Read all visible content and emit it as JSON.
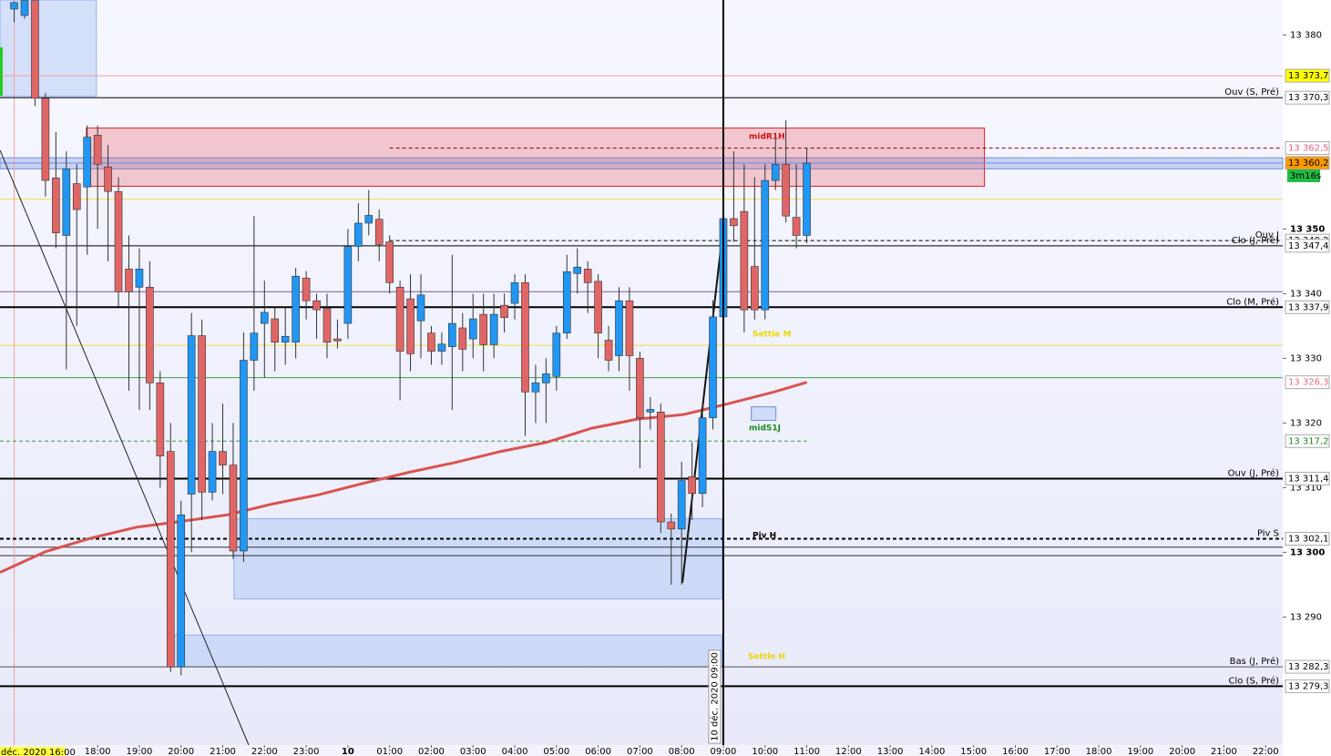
{
  "chart_data": {
    "type": "candlestick",
    "up_color": "#2196f3",
    "down_color": "#e06666",
    "xlim": [
      15.66,
      46.41
    ],
    "ylim": [
      13270.2,
      13385.4
    ],
    "date_label": "déc. 2020 16:00",
    "countdown": "3m16s",
    "crosshair": {
      "x": 33,
      "label": "10 déc. 2020 09:00",
      "color": "#000000"
    },
    "markers": [
      {
        "x": 16,
        "color": "#f0a0a0"
      }
    ],
    "xticks": [
      {
        "value": 18,
        "label": "18:00"
      },
      {
        "value": 19,
        "label": "19:00"
      },
      {
        "value": 20,
        "label": "20:00"
      },
      {
        "value": 21,
        "label": "21:00"
      },
      {
        "value": 22,
        "label": "22:00"
      },
      {
        "value": 23,
        "label": "23:00"
      },
      {
        "value": 24,
        "label": "10"
      },
      {
        "value": 25,
        "label": "01:00"
      },
      {
        "value": 26,
        "label": "02:00"
      },
      {
        "value": 27,
        "label": "03:00"
      },
      {
        "value": 28,
        "label": "04:00"
      },
      {
        "value": 29,
        "label": "05:00"
      },
      {
        "value": 30,
        "label": "06:00"
      },
      {
        "value": 31,
        "label": "07:00"
      },
      {
        "value": 32,
        "label": "08:00"
      },
      {
        "value": 33,
        "label": "09:00"
      },
      {
        "value": 34,
        "label": "10:00"
      },
      {
        "value": 35,
        "label": "11:00"
      },
      {
        "value": 36,
        "label": "12:00"
      },
      {
        "value": 37,
        "label": "13:00"
      },
      {
        "value": 38,
        "label": "14:00"
      },
      {
        "value": 39,
        "label": "15:00"
      },
      {
        "value": 40,
        "label": "16:00"
      },
      {
        "value": 41,
        "label": "17:00"
      },
      {
        "value": 42,
        "label": "18:00"
      },
      {
        "value": 43,
        "label": "19:00"
      },
      {
        "value": 44,
        "label": "20:00"
      },
      {
        "value": 45,
        "label": "21:00"
      },
      {
        "value": 46,
        "label": "22:00"
      }
    ],
    "yticks": [
      {
        "value": 13380,
        "label": "13 380"
      },
      {
        "value": 13350,
        "label": "13 350"
      },
      {
        "value": 13340,
        "label": "13 340"
      },
      {
        "value": 13330,
        "label": "13 330"
      },
      {
        "value": 13320,
        "label": "13 320"
      },
      {
        "value": 13310,
        "label": "13 310"
      },
      {
        "value": 13300,
        "label": "13 300"
      },
      {
        "value": 13290,
        "label": "13 290"
      }
    ],
    "x": [
      16,
      16.25,
      16.5,
      16.75,
      17,
      17.25,
      17.5,
      17.75,
      18,
      18.25,
      18.5,
      18.75,
      19,
      19.25,
      19.5,
      19.75,
      20,
      20.25,
      20.5,
      20.75,
      21,
      21.25,
      21.5,
      21.75,
      22,
      22.25,
      22.5,
      22.75,
      23,
      23.25,
      23.5,
      23.75,
      24,
      24.25,
      24.5,
      24.75,
      25,
      25.25,
      25.5,
      25.75,
      26,
      26.25,
      26.5,
      26.75,
      27,
      27.25,
      27.5,
      27.75,
      28,
      28.25,
      28.5,
      28.75,
      29,
      29.25,
      29.5,
      29.75,
      30,
      30.25,
      30.5,
      30.75,
      31,
      31.25,
      31.5,
      31.75,
      32,
      32.25,
      32.5,
      32.75,
      33,
      33.25,
      33.5,
      33.75,
      34,
      34.25,
      34.5,
      34.75,
      35
    ],
    "open": [
      13384,
      13383,
      13385.3,
      13370.2,
      13357.9,
      13349,
      13357,
      13356.5,
      13364.5,
      13359.6,
      13355.8,
      13343.8,
      13341.0,
      13341,
      13326.2,
      13315.6,
      13282.3,
      13309,
      13333.5,
      13309.3,
      13315.6,
      13313.5,
      13300.2,
      13329.7,
      13335.4,
      13336.1,
      13332.5,
      13332.5,
      13342.4,
      13338.9,
      13337.7,
      13333,
      13335.4,
      13347.3,
      13350.9,
      13351.5,
      13348,
      13341,
      13339.2,
      13335.8,
      13333.9,
      13331.1,
      13331.8,
      13334.7,
      13333.0,
      13336.8,
      13332.1,
      13338.2,
      13338.5,
      13341.7,
      13324.8,
      13326.2,
      13327.2,
      13333.9,
      13343.1,
      13343.8,
      13341.9,
      13332.8,
      13330.4,
      13338.9,
      13330,
      13321.7,
      13321.7,
      13304.7,
      13303.6,
      13311.7,
      13309.1,
      13320.8,
      13336.4,
      13351.6,
      13352.7,
      13344.2,
      13337.5,
      13357.5,
      13360,
      13351.8,
      13349
    ],
    "high": [
      13385.2,
      13385.3,
      13385.3,
      13371,
      13365,
      13362,
      13360,
      13366,
      13366,
      13363,
      13358,
      13349,
      13347,
      13345,
      13328,
      13320,
      13308,
      13337,
      13336,
      13320,
      13323,
      13320,
      13334,
      13352,
      13342,
      13338,
      13338,
      13344,
      13343.5,
      13340,
      13340,
      13336,
      13350,
      13354,
      13356,
      13353,
      13349,
      13342,
      13343,
      13343,
      13335,
      13334,
      13346,
      13337,
      13340,
      13340,
      13340,
      13340,
      13343,
      13343,
      13329,
      13330,
      13335,
      13346,
      13347,
      13345,
      13343,
      13335,
      13341,
      13341,
      13331,
      13324,
      13323,
      13306,
      13314,
      13317,
      13323,
      13339,
      13353,
      13362,
      13360,
      13358,
      13360,
      13364,
      13366.8,
      13360,
      13362.5
    ],
    "low": [
      13382,
      13382.5,
      13369,
      13355,
      13347,
      13328.3,
      13335,
      13346,
      13350,
      13345,
      13338,
      13325,
      13322,
      13322,
      13310,
      13281.5,
      13281,
      13300,
      13305,
      13308,
      13309,
      13299,
      13298.5,
      13325,
      13327,
      13328,
      13329,
      13330,
      13336,
      13333,
      13330,
      13331.5,
      13333,
      13345,
      13349,
      13345,
      13340,
      13323.5,
      13328,
      13330,
      13329,
      13329,
      13322,
      13328,
      13330,
      13328,
      13330,
      13334,
      13336,
      13318,
      13320,
      13320,
      13325,
      13333,
      13340,
      13337,
      13330,
      13328,
      13328,
      13325,
      13313,
      13319,
      13303,
      13295,
      13295,
      13305,
      13307,
      13319,
      13334,
      13348,
      13334,
      13336,
      13336,
      13356,
      13351,
      13347,
      13347.8
    ],
    "close": [
      13385,
      13385.3,
      13370.2,
      13357.5,
      13349.4,
      13359.3,
      13353,
      13364.2,
      13360,
      13355.8,
      13340.3,
      13340.3,
      13343.8,
      13326.2,
      13314.9,
      13282.3,
      13305.8,
      13333.5,
      13309.3,
      13315.6,
      13313.5,
      13300.2,
      13329.7,
      13333.9,
      13337.1,
      13332.5,
      13333.4,
      13342.7,
      13338.9,
      13337.5,
      13332.5,
      13332.7,
      13347.3,
      13350.9,
      13352.1,
      13347.6,
      13341.7,
      13331.1,
      13330.7,
      13339.8,
      13331.1,
      13332.2,
      13335.4,
      13331.4,
      13336.1,
      13332.1,
      13336.8,
      13336.3,
      13341.7,
      13324.8,
      13326.2,
      13327.6,
      13333.9,
      13343.4,
      13344.1,
      13341.7,
      13333.9,
      13329.7,
      13338.9,
      13330.4,
      13320.8,
      13322.1,
      13304.7,
      13303.6,
      13311.1,
      13309.1,
      13320.8,
      13336.4,
      13351.6,
      13350.5,
      13337.5,
      13337.5,
      13357.5,
      13360,
      13352,
      13349,
      13360.2
    ],
    "ma": {
      "color": "#d9534f",
      "x": [
        15.66,
        16.75,
        17.84,
        18.94,
        20.03,
        21.12,
        22.21,
        23.3,
        24.39,
        25.48,
        26.58,
        27.67,
        28.76,
        29.85,
        30.94,
        32.04,
        33.13,
        34.22,
        35.0
      ],
      "values": [
        13296.9,
        13300.1,
        13302.2,
        13303.9,
        13304.8,
        13305.8,
        13307.5,
        13308.9,
        13310.7,
        13312.4,
        13313.9,
        13315.6,
        13317.0,
        13319.2,
        13320.6,
        13321.3,
        13323.0,
        13324.8,
        13326.3
      ]
    },
    "zones": [
      {
        "x": [
          15.66,
          46.41
        ],
        "y": [
          13359.3,
          13361.0
        ],
        "fill": "rgba(120,150,230,0.35)",
        "stroke": "#6a8fd8"
      },
      {
        "x": [
          15.66,
          17.97
        ],
        "y": [
          13370.5,
          13385.4
        ],
        "fill": "rgba(170,195,245,0.45)",
        "stroke": "#8fb0f0"
      },
      {
        "x": [
          17.73,
          39.26
        ],
        "y": [
          13356.6,
          13365.6
        ],
        "fill": "rgba(235,90,100,0.3)",
        "stroke": "#e0202a"
      },
      {
        "x": [
          21.27,
          32.97
        ],
        "y": [
          13292.8,
          13305.2
        ],
        "fill": "rgba(170,195,245,0.45)",
        "stroke": "#8fb0f0"
      },
      {
        "x": [
          19.74,
          32.97
        ],
        "y": [
          13282.3,
          13287.2
        ],
        "fill": "rgba(170,195,245,0.45)",
        "stroke": "#8fb0f0"
      },
      {
        "x": [
          33.67,
          34.26
        ],
        "y": [
          13320.4,
          13322.5
        ],
        "fill": "rgba(170,195,245,0.45)",
        "stroke": "#6a8fd8"
      }
    ],
    "lines": [
      {
        "value": 13354.6,
        "color": "#f0e040"
      },
      {
        "value": 13340.3,
        "color": "#7a5a9a"
      },
      {
        "value": 13332.0,
        "color": "#f0e040"
      },
      {
        "value": 13327.0,
        "color": "#40a040"
      },
      {
        "value": 13300.8,
        "color": "#333333"
      },
      {
        "value": 13299.5,
        "color": "#333333"
      }
    ],
    "levels": [
      {
        "value": 13373.7,
        "label": "13 373,7",
        "color": "#f0a0a0",
        "tag_bg": "#ffff00",
        "tag_color": "#000000"
      },
      {
        "value": 13370.3,
        "label": "13 370,3",
        "text": "Ouv (S, Pré)",
        "color": "#000000",
        "tag_bg": "#ffffff",
        "tag_color": "#000000"
      },
      {
        "value": 13362.5,
        "label": "13 362,5",
        "color": "#8b0000",
        "dash": true,
        "from": 25,
        "tag_bg": "#ffffff",
        "tag_color": "#e06080"
      },
      {
        "value": 13360.2,
        "label": "13 360,2",
        "color": "#6a8fd8",
        "tag_bg": "#ff9900",
        "tag_color": "#000000"
      },
      {
        "value": 13348.2,
        "label": "13 348,2",
        "text": "Ouv J",
        "color": "#000000",
        "dash": true,
        "from": 25,
        "tag_bg": "#ffffff",
        "tag_color": "#000000"
      },
      {
        "value": 13347.4,
        "label": "13 347,4",
        "text": "Clo (J, Pré)",
        "color": "#000000",
        "tag_bg": "#ffffff",
        "tag_color": "#000000"
      },
      {
        "value": 13337.9,
        "label": "13 337,9",
        "text": "Clo (M, Pré)",
        "color": "#000000",
        "width": 2,
        "tag_bg": "#ffffff",
        "tag_color": "#000000"
      },
      {
        "value": 13326.3,
        "label": "13 326,3",
        "tag_bg": "#ffffff",
        "tag_color": "#e07080"
      },
      {
        "value": 13317.2,
        "label": "13 317,2",
        "color": "#30a030",
        "dash": true,
        "to": 35,
        "tag_bg": "#ffffff",
        "tag_color": "#208020"
      },
      {
        "value": 13311.4,
        "label": "13 311,4",
        "text": "Ouv (J, Pré)",
        "color": "#000000",
        "width": 2,
        "tag_bg": "#ffffff",
        "tag_color": "#000000"
      },
      {
        "value": 13302.1,
        "label": "13 302,1",
        "text": "Piv S",
        "color": "#000000",
        "dash": true,
        "width": 2,
        "tag_bg": "#ffffff",
        "tag_color": "#000000"
      },
      {
        "value": 13282.3,
        "label": "13 282,3",
        "text": "Bas (J, Pré)",
        "color": "#555555",
        "tag_bg": "#ffffff",
        "tag_color": "#000000"
      },
      {
        "value": 13279.3,
        "label": "13 279,3",
        "text": "Clo (S, Pré)",
        "color": "#000000",
        "width": 2,
        "tag_bg": "#ffffff",
        "tag_color": "#000000"
      }
    ],
    "annotations": [
      "midR1H",
      "Settle M",
      "midS1J",
      "Piv H",
      "Settle H"
    ]
  }
}
